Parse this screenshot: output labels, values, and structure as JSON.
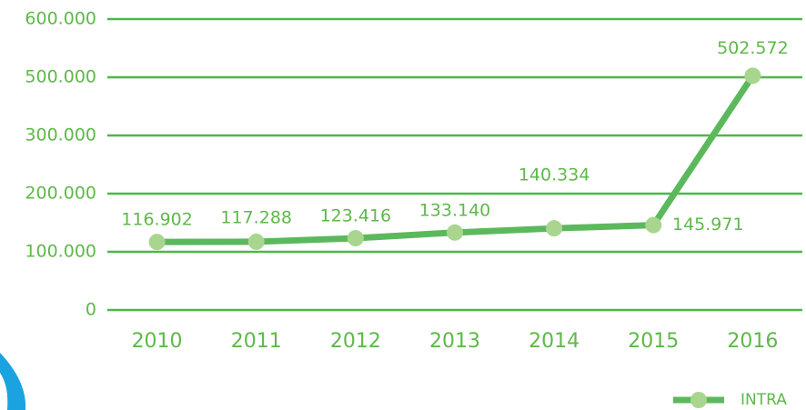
{
  "chart_data": {
    "type": "line",
    "categories": [
      "2010",
      "2011",
      "2012",
      "2013",
      "2014",
      "2015",
      "2016"
    ],
    "series": [
      {
        "name": "INTRA",
        "color": "#5cb85c",
        "marker_color": "#a8d68e",
        "values": [
          116902,
          117288,
          123416,
          133140,
          140334,
          145971,
          502572
        ],
        "value_labels": [
          "116.902",
          "117.288",
          "123.416",
          "133.140",
          "140.334",
          "145.971",
          "502.572"
        ]
      }
    ],
    "ylim": [
      0,
      600000
    ],
    "yticks": [
      0,
      {
        "value": 100000,
        "label": "100.000"
      },
      {
        "value": 200000,
        "label": "200.000"
      },
      {
        "value": 300000,
        "label": "300.000"
      },
      {
        "value": 500000,
        "label": "500.000"
      },
      {
        "value": 600000,
        "label": "600.000"
      }
    ],
    "grid": true,
    "legend": "bottom-right"
  }
}
